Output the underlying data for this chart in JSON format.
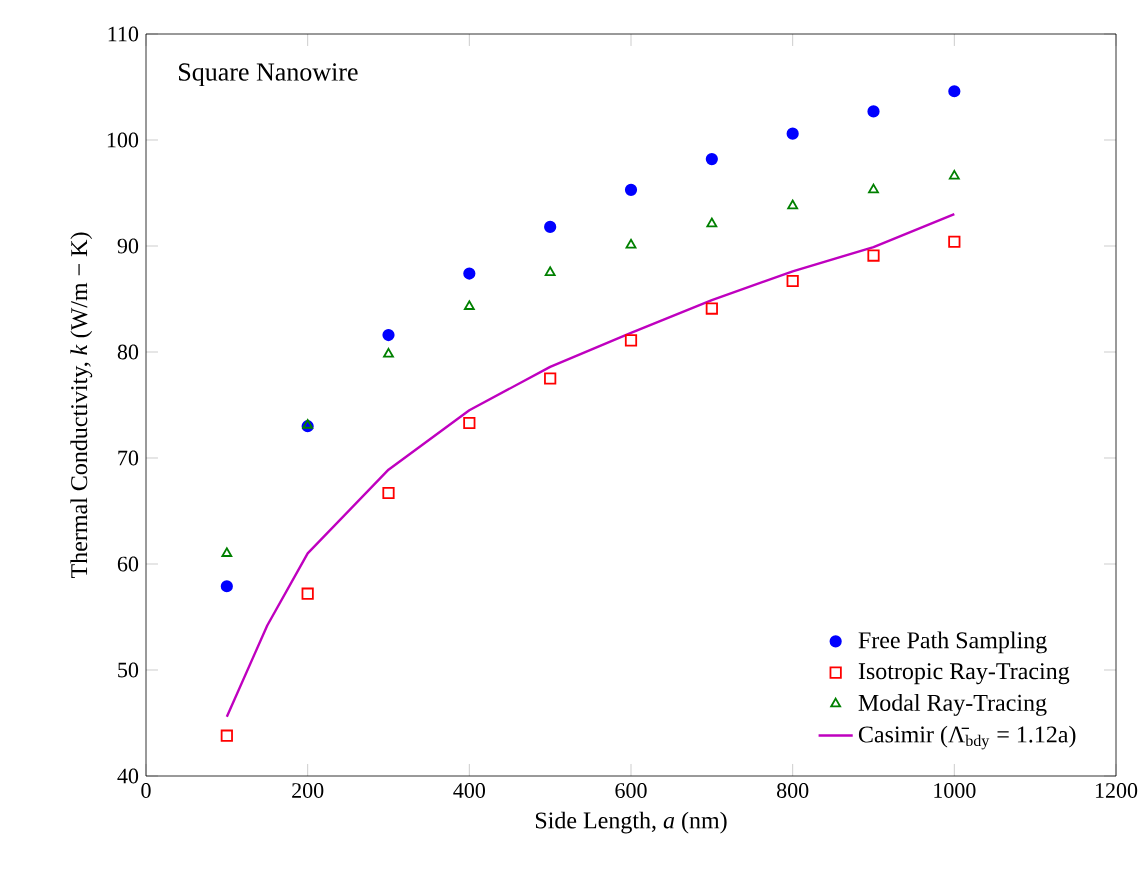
{
  "chart_data": {
    "type": "scatter",
    "xlabel": "Side Length, *a* (nm)",
    "ylabel": "Thermal Conductivity, *k* (W/m − K)",
    "annotations": [
      "Square Nanowire"
    ],
    "xlim": [
      0,
      1200
    ],
    "xticks": [
      0,
      200,
      400,
      600,
      800,
      1000,
      1200
    ],
    "ylim": [
      40,
      110
    ],
    "yticks": [
      40,
      50,
      60,
      70,
      80,
      90,
      100,
      110
    ],
    "legend": "bottom right",
    "grid": false,
    "series": [
      {
        "name": "Free Path Sampling",
        "color": "#0000ff",
        "marker": "circle",
        "x": [
          100,
          200,
          300,
          400,
          500,
          600,
          700,
          800,
          900,
          1000
        ],
        "values": [
          57.9,
          73.0,
          81.6,
          87.4,
          91.8,
          95.3,
          98.2,
          100.6,
          102.7,
          104.6
        ]
      },
      {
        "name": "Isotropic Ray-Tracing",
        "color": "#ff0000",
        "marker": "square",
        "x": [
          100,
          200,
          300,
          400,
          500,
          600,
          700,
          800,
          900,
          1000
        ],
        "values": [
          43.8,
          57.2,
          66.7,
          73.3,
          77.5,
          81.1,
          84.1,
          86.7,
          89.1,
          90.4
        ]
      },
      {
        "name": "Modal Ray-Tracing",
        "color": "#008000",
        "marker": "triangle",
        "x": [
          100,
          200,
          300,
          400,
          500,
          600,
          700,
          800,
          900,
          1000
        ],
        "values": [
          61.0,
          73.1,
          79.8,
          84.3,
          87.5,
          90.1,
          92.1,
          93.8,
          95.3,
          96.6
        ]
      },
      {
        "name": "Casimir (Λ̄$_{bdy}$ = 1.12a)",
        "type": "line",
        "color": "#bf00bf",
        "marker": "none",
        "line_style": "solid",
        "x": [
          100,
          150,
          200,
          300,
          400,
          500,
          600,
          700,
          800,
          900,
          1000
        ],
        "values": [
          45.6,
          54.2,
          61.0,
          68.9,
          74.5,
          78.6,
          81.8,
          84.9,
          87.6,
          89.9,
          93.0
        ]
      }
    ]
  }
}
